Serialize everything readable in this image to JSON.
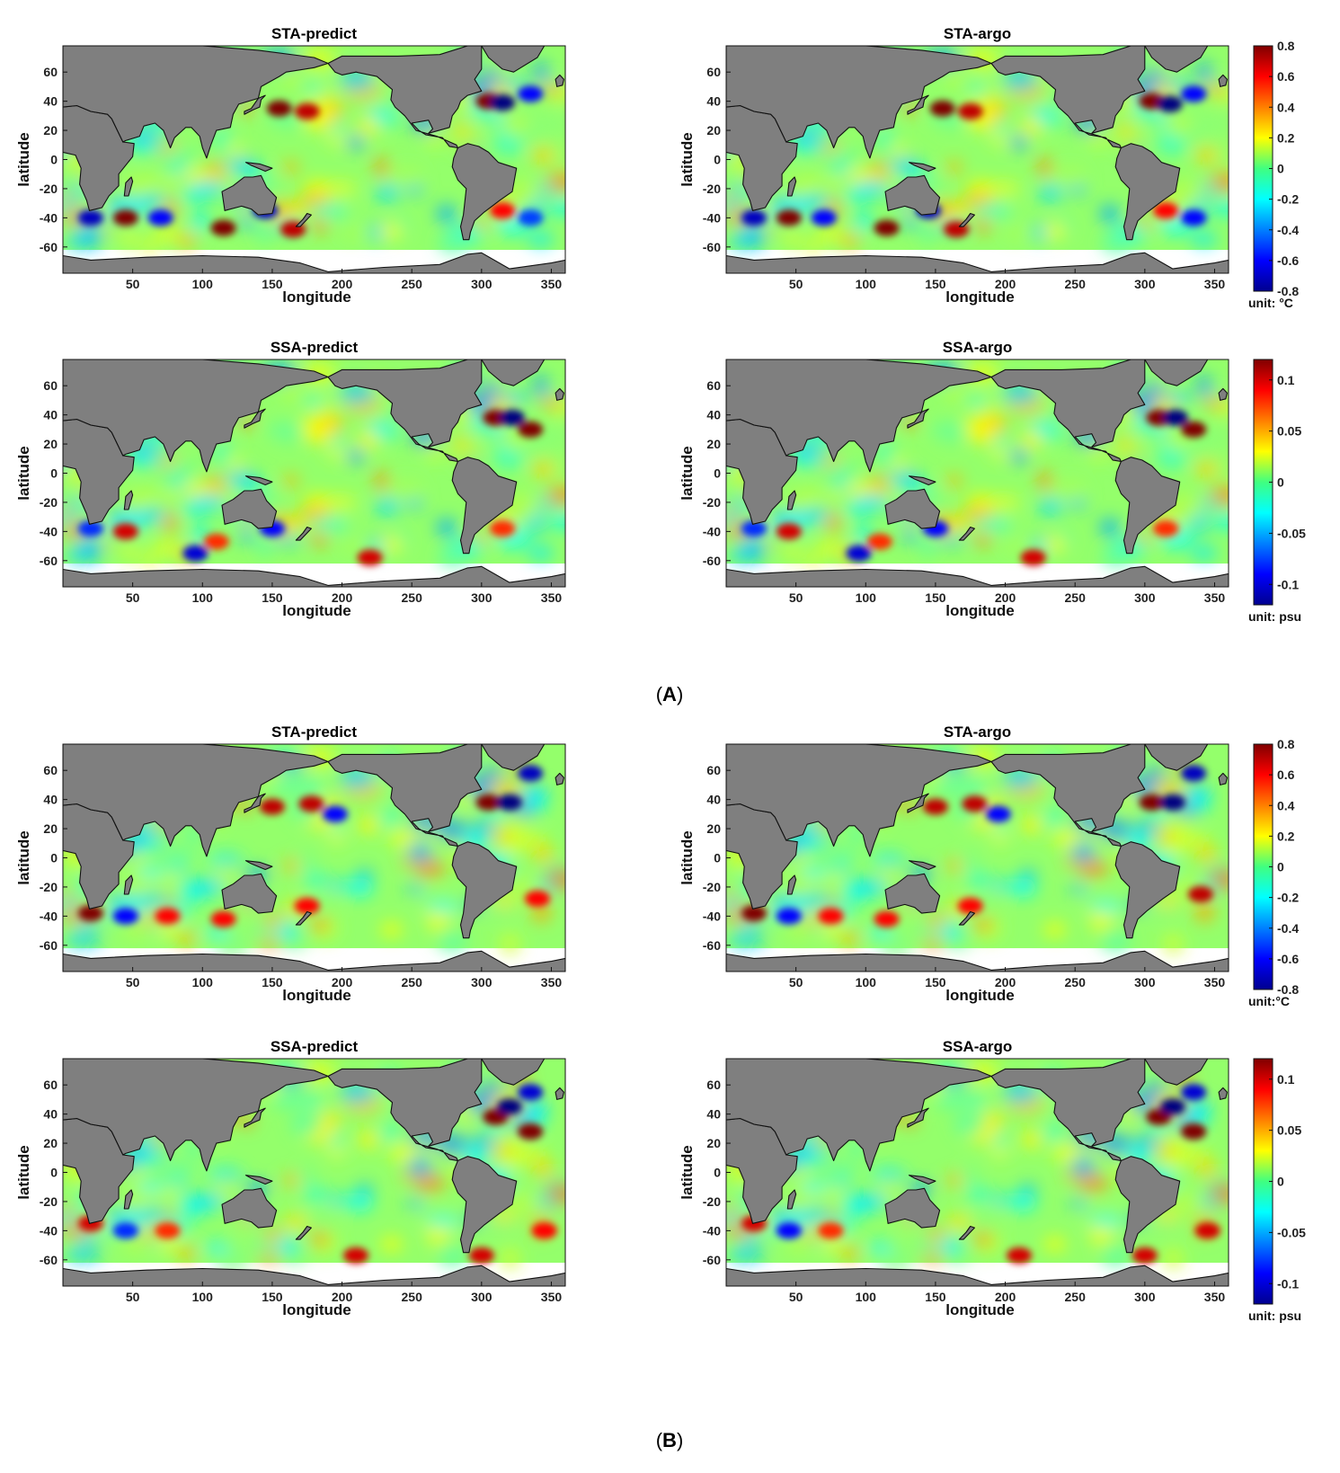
{
  "chart_data": [
    {
      "type": "heatmap",
      "group": "A",
      "title": "STA-predict",
      "xlabel": "longitude",
      "ylabel": "latitude",
      "xticks": [
        50,
        100,
        150,
        200,
        250,
        300,
        350
      ],
      "yticks": [
        60,
        40,
        20,
        0,
        -20,
        -40,
        -60
      ],
      "xlim": [
        0,
        360
      ],
      "ylim": [
        -78,
        78
      ],
      "ocean_lat_range": [
        -62,
        78
      ],
      "colorscale": "jet",
      "clim": [
        -0.8,
        0.8
      ],
      "land_color": "#7f7f7f",
      "anomalies": [
        {
          "lon": 155,
          "lat": 35,
          "value": 0.8
        },
        {
          "lon": 175,
          "lat": 33,
          "value": 0.7
        },
        {
          "lon": 305,
          "lat": 40,
          "value": 0.8
        },
        {
          "lon": 315,
          "lat": 39,
          "value": -0.8
        },
        {
          "lon": 335,
          "lat": 45,
          "value": -0.6
        },
        {
          "lon": 45,
          "lat": -40,
          "value": 0.8
        },
        {
          "lon": 20,
          "lat": -40,
          "value": -0.7
        },
        {
          "lon": 115,
          "lat": -47,
          "value": 0.8
        },
        {
          "lon": 165,
          "lat": -48,
          "value": 0.7
        },
        {
          "lon": 145,
          "lat": -35,
          "value": -0.7
        },
        {
          "lon": 315,
          "lat": -35,
          "value": 0.6
        },
        {
          "lon": 335,
          "lat": -40,
          "value": -0.5
        },
        {
          "lon": 70,
          "lat": -40,
          "value": -0.6
        }
      ]
    },
    {
      "type": "heatmap",
      "group": "A",
      "title": "STA-argo",
      "xlabel": "longitude",
      "ylabel": "latitude",
      "xticks": [
        50,
        100,
        150,
        200,
        250,
        300,
        350
      ],
      "yticks": [
        60,
        40,
        20,
        0,
        -20,
        -40,
        -60
      ],
      "xlim": [
        0,
        360
      ],
      "ylim": [
        -78,
        78
      ],
      "ocean_lat_range": [
        -62,
        78
      ],
      "colorscale": "jet",
      "clim": [
        -0.8,
        0.8
      ],
      "land_color": "#7f7f7f",
      "colorbar": {
        "ticks": [
          0.8,
          0.6,
          0.4,
          0.2,
          0,
          -0.2,
          -0.4,
          -0.6,
          -0.8
        ],
        "unit": "unit: °C"
      },
      "anomalies": [
        {
          "lon": 155,
          "lat": 35,
          "value": 0.8
        },
        {
          "lon": 175,
          "lat": 33,
          "value": 0.7
        },
        {
          "lon": 305,
          "lat": 40,
          "value": 0.8
        },
        {
          "lon": 318,
          "lat": 38,
          "value": -0.8
        },
        {
          "lon": 335,
          "lat": 45,
          "value": -0.6
        },
        {
          "lon": 45,
          "lat": -40,
          "value": 0.8
        },
        {
          "lon": 20,
          "lat": -40,
          "value": -0.7
        },
        {
          "lon": 115,
          "lat": -47,
          "value": 0.8
        },
        {
          "lon": 165,
          "lat": -48,
          "value": 0.7
        },
        {
          "lon": 145,
          "lat": -35,
          "value": -0.7
        },
        {
          "lon": 315,
          "lat": -35,
          "value": 0.6
        },
        {
          "lon": 335,
          "lat": -40,
          "value": -0.6
        },
        {
          "lon": 70,
          "lat": -40,
          "value": -0.6
        }
      ]
    },
    {
      "type": "heatmap",
      "group": "A",
      "title": "SSA-predict",
      "xlabel": "longitude",
      "ylabel": "latitude",
      "xticks": [
        50,
        100,
        150,
        200,
        250,
        300,
        350
      ],
      "yticks": [
        60,
        40,
        20,
        0,
        -20,
        -40,
        -60
      ],
      "xlim": [
        0,
        360
      ],
      "ylim": [
        -78,
        78
      ],
      "ocean_lat_range": [
        -62,
        78
      ],
      "colorscale": "jet",
      "clim": [
        -0.12,
        0.12
      ],
      "land_color": "#7f7f7f",
      "anomalies": [
        {
          "lon": 310,
          "lat": 38,
          "value": 0.12
        },
        {
          "lon": 322,
          "lat": 38,
          "value": -0.12
        },
        {
          "lon": 335,
          "lat": 30,
          "value": 0.12
        },
        {
          "lon": 45,
          "lat": -40,
          "value": 0.1
        },
        {
          "lon": 20,
          "lat": -38,
          "value": -0.08
        },
        {
          "lon": 110,
          "lat": -47,
          "value": 0.08
        },
        {
          "lon": 95,
          "lat": -55,
          "value": -0.1
        },
        {
          "lon": 150,
          "lat": -38,
          "value": -0.09
        },
        {
          "lon": 220,
          "lat": -58,
          "value": 0.1
        },
        {
          "lon": 315,
          "lat": -38,
          "value": 0.08
        }
      ]
    },
    {
      "type": "heatmap",
      "group": "A",
      "title": "SSA-argo",
      "xlabel": "longitude",
      "ylabel": "latitude",
      "xticks": [
        50,
        100,
        150,
        200,
        250,
        300,
        350
      ],
      "yticks": [
        60,
        40,
        20,
        0,
        -20,
        -40,
        -60
      ],
      "xlim": [
        0,
        360
      ],
      "ylim": [
        -78,
        78
      ],
      "ocean_lat_range": [
        -62,
        78
      ],
      "colorscale": "jet",
      "clim": [
        -0.12,
        0.12
      ],
      "land_color": "#7f7f7f",
      "colorbar": {
        "ticks": [
          0.1,
          0.05,
          0,
          -0.05,
          -0.1
        ],
        "unit": "unit: psu"
      },
      "anomalies": [
        {
          "lon": 310,
          "lat": 38,
          "value": 0.12
        },
        {
          "lon": 322,
          "lat": 38,
          "value": -0.12
        },
        {
          "lon": 335,
          "lat": 30,
          "value": 0.12
        },
        {
          "lon": 45,
          "lat": -40,
          "value": 0.1
        },
        {
          "lon": 20,
          "lat": -38,
          "value": -0.08
        },
        {
          "lon": 110,
          "lat": -47,
          "value": 0.08
        },
        {
          "lon": 95,
          "lat": -55,
          "value": -0.1
        },
        {
          "lon": 150,
          "lat": -38,
          "value": -0.09
        },
        {
          "lon": 220,
          "lat": -58,
          "value": 0.1
        },
        {
          "lon": 315,
          "lat": -38,
          "value": 0.08
        }
      ]
    },
    {
      "type": "heatmap",
      "group": "B",
      "title": "STA-predict",
      "xlabel": "longitude",
      "ylabel": "latitude",
      "xticks": [
        50,
        100,
        150,
        200,
        250,
        300,
        350
      ],
      "yticks": [
        60,
        40,
        20,
        0,
        -20,
        -40,
        -60
      ],
      "xlim": [
        0,
        360
      ],
      "ylim": [
        -78,
        78
      ],
      "ocean_lat_range": [
        -62,
        78
      ],
      "colorscale": "jet",
      "clim": [
        -0.8,
        0.8
      ],
      "land_color": "#7f7f7f",
      "anomalies": [
        {
          "lon": 150,
          "lat": 35,
          "value": 0.7
        },
        {
          "lon": 178,
          "lat": 37,
          "value": 0.7
        },
        {
          "lon": 195,
          "lat": 30,
          "value": -0.6
        },
        {
          "lon": 305,
          "lat": 38,
          "value": 0.8
        },
        {
          "lon": 320,
          "lat": 38,
          "value": -0.8
        },
        {
          "lon": 335,
          "lat": 58,
          "value": -0.7
        },
        {
          "lon": 20,
          "lat": -38,
          "value": 0.8
        },
        {
          "lon": 45,
          "lat": -40,
          "value": -0.6
        },
        {
          "lon": 75,
          "lat": -40,
          "value": 0.6
        },
        {
          "lon": 115,
          "lat": -42,
          "value": 0.6
        },
        {
          "lon": 175,
          "lat": -33,
          "value": 0.6
        },
        {
          "lon": 340,
          "lat": -28,
          "value": 0.6
        }
      ]
    },
    {
      "type": "heatmap",
      "group": "B",
      "title": "STA-argo",
      "xlabel": "longitude",
      "ylabel": "latitude",
      "xticks": [
        50,
        100,
        150,
        200,
        250,
        300,
        350
      ],
      "yticks": [
        60,
        40,
        20,
        0,
        -20,
        -40,
        -60
      ],
      "xlim": [
        0,
        360
      ],
      "ylim": [
        -78,
        78
      ],
      "ocean_lat_range": [
        -62,
        78
      ],
      "colorscale": "jet",
      "clim": [
        -0.8,
        0.8
      ],
      "land_color": "#7f7f7f",
      "colorbar": {
        "ticks": [
          0.8,
          0.6,
          0.4,
          0.2,
          0,
          -0.2,
          -0.4,
          -0.6,
          -0.8
        ],
        "unit": "unit:°C"
      },
      "anomalies": [
        {
          "lon": 150,
          "lat": 35,
          "value": 0.7
        },
        {
          "lon": 178,
          "lat": 37,
          "value": 0.7
        },
        {
          "lon": 195,
          "lat": 30,
          "value": -0.6
        },
        {
          "lon": 305,
          "lat": 38,
          "value": 0.8
        },
        {
          "lon": 320,
          "lat": 38,
          "value": -0.8
        },
        {
          "lon": 335,
          "lat": 58,
          "value": -0.7
        },
        {
          "lon": 20,
          "lat": -38,
          "value": 0.8
        },
        {
          "lon": 45,
          "lat": -40,
          "value": -0.6
        },
        {
          "lon": 75,
          "lat": -40,
          "value": 0.6
        },
        {
          "lon": 115,
          "lat": -42,
          "value": 0.6
        },
        {
          "lon": 175,
          "lat": -33,
          "value": 0.6
        },
        {
          "lon": 340,
          "lat": -25,
          "value": 0.7
        }
      ]
    },
    {
      "type": "heatmap",
      "group": "B",
      "title": "SSA-predict",
      "xlabel": "longitude",
      "ylabel": "latitude",
      "xticks": [
        50,
        100,
        150,
        200,
        250,
        300,
        350
      ],
      "yticks": [
        60,
        40,
        20,
        0,
        -20,
        -40,
        -60
      ],
      "xlim": [
        0,
        360
      ],
      "ylim": [
        -78,
        78
      ],
      "ocean_lat_range": [
        -62,
        78
      ],
      "colorscale": "jet",
      "clim": [
        -0.12,
        0.12
      ],
      "land_color": "#7f7f7f",
      "anomalies": [
        {
          "lon": 310,
          "lat": 38,
          "value": 0.12
        },
        {
          "lon": 320,
          "lat": 45,
          "value": -0.12
        },
        {
          "lon": 335,
          "lat": 28,
          "value": 0.12
        },
        {
          "lon": 335,
          "lat": 55,
          "value": -0.1
        },
        {
          "lon": 20,
          "lat": -35,
          "value": 0.1
        },
        {
          "lon": 45,
          "lat": -40,
          "value": -0.08
        },
        {
          "lon": 75,
          "lat": -40,
          "value": 0.08
        },
        {
          "lon": 210,
          "lat": -57,
          "value": 0.1
        },
        {
          "lon": 300,
          "lat": -57,
          "value": 0.1
        },
        {
          "lon": 345,
          "lat": -40,
          "value": 0.09
        }
      ]
    },
    {
      "type": "heatmap",
      "group": "B",
      "title": "SSA-argo",
      "xlabel": "longitude",
      "ylabel": "latitude",
      "xticks": [
        50,
        100,
        150,
        200,
        250,
        300,
        350
      ],
      "yticks": [
        60,
        40,
        20,
        0,
        -20,
        -40,
        -60
      ],
      "xlim": [
        0,
        360
      ],
      "ylim": [
        -78,
        78
      ],
      "ocean_lat_range": [
        -62,
        78
      ],
      "colorscale": "jet",
      "clim": [
        -0.12,
        0.12
      ],
      "land_color": "#7f7f7f",
      "colorbar": {
        "ticks": [
          0.1,
          0.05,
          0,
          -0.05,
          -0.1
        ],
        "unit": "unit: psu"
      },
      "anomalies": [
        {
          "lon": 310,
          "lat": 38,
          "value": 0.12
        },
        {
          "lon": 320,
          "lat": 45,
          "value": -0.12
        },
        {
          "lon": 335,
          "lat": 28,
          "value": 0.12
        },
        {
          "lon": 335,
          "lat": 55,
          "value": -0.1
        },
        {
          "lon": 20,
          "lat": -35,
          "value": 0.1
        },
        {
          "lon": 45,
          "lat": -40,
          "value": -0.09
        },
        {
          "lon": 75,
          "lat": -40,
          "value": 0.08
        },
        {
          "lon": 210,
          "lat": -57,
          "value": 0.1
        },
        {
          "lon": 300,
          "lat": -57,
          "value": 0.1
        },
        {
          "lon": 345,
          "lat": -40,
          "value": 0.1
        }
      ]
    }
  ],
  "sections": [
    {
      "label": "(",
      "bold": "A",
      "close": ")"
    },
    {
      "label": "(",
      "bold": "B",
      "close": ")"
    }
  ]
}
